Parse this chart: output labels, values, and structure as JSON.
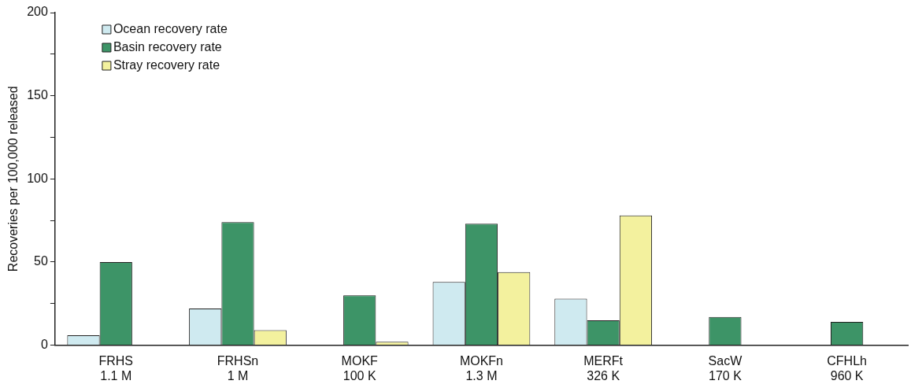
{
  "chart_data": {
    "type": "bar",
    "ylabel": "Recoveries per 100,000 released",
    "categories": [
      "FRHS\n1.1 M",
      "FRHSn\n1 M",
      "MOKF\n100 K",
      "MOKFn\n1.3 M",
      "MERFt\n326 K",
      "SacW\n170 K",
      "CFHLh\n960 K"
    ],
    "series": [
      {
        "name": "Ocean recovery rate",
        "color": "#cfeaf0",
        "values": [
          6,
          22,
          null,
          38,
          28,
          null,
          null
        ]
      },
      {
        "name": "Basin recovery rate",
        "color": "#3d9467",
        "values": [
          50,
          74,
          30,
          73,
          15,
          17,
          14
        ]
      },
      {
        "name": "Stray recovery rate",
        "color": "#f3f19e",
        "values": [
          null,
          9,
          2,
          44,
          78,
          null,
          null
        ]
      }
    ],
    "ylim": [
      0,
      200
    ],
    "yticks": [
      0,
      {
        "value": 25,
        "label": null
      },
      50,
      {
        "value": 75,
        "label": null
      },
      100,
      {
        "value": 125,
        "label": null
      },
      150,
      {
        "value": 175,
        "label": null
      },
      200
    ],
    "grid": false,
    "legend": "top left"
  }
}
